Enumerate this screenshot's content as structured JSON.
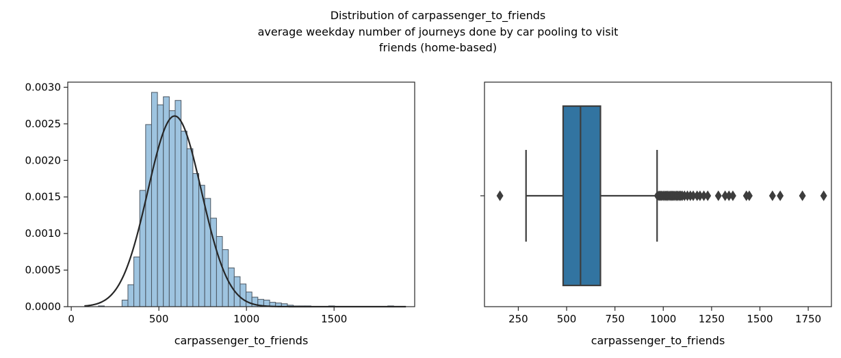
{
  "figure": {
    "title_lines": [
      "Distribution of carpassenger_to_friends",
      "average weekday number of journeys done by car pooling to visit",
      "friends (home-based)"
    ]
  },
  "chart_data": [
    {
      "type": "bar",
      "subtype": "histogram-with-fitted-normal-curve",
      "xlabel": "carpassenger_to_friends",
      "ylabel": "",
      "xlim": [
        -20,
        1960
      ],
      "ylim": [
        0,
        0.00307
      ],
      "xticks": [
        0,
        500,
        1000,
        1500
      ],
      "xtick_labels": [
        "0",
        "500",
        "1000",
        "1500"
      ],
      "yticks": [
        0,
        0.0005,
        0.001,
        0.0015,
        0.002,
        0.0025,
        0.003
      ],
      "ytick_labels": [
        "0.0000",
        "0.0005",
        "0.0010",
        "0.0015",
        "0.0020",
        "0.0025",
        "0.0030"
      ],
      "bin_start": 155,
      "bin_width": 33.7,
      "bin_values": [
        1e-05,
        0,
        0,
        0,
        9e-05,
        0.0003,
        0.00068,
        0.00159,
        0.00249,
        0.00293,
        0.00276,
        0.00287,
        0.00268,
        0.00282,
        0.0024,
        0.00216,
        0.00182,
        0.00166,
        0.00148,
        0.00121,
        0.00096,
        0.00078,
        0.00053,
        0.00041,
        0.00031,
        0.0002,
        0.00013,
        0.0001,
        9e-05,
        6e-05,
        5e-05,
        4e-05,
        2e-05,
        1e-05,
        1e-05,
        1e-05,
        0,
        0,
        0,
        1e-05,
        0,
        0,
        0,
        0,
        0,
        0,
        0,
        0,
        0,
        1e-05
      ],
      "bar_color": "#9ec4e0",
      "bar_edge_color": "#4a5560",
      "fit_curve": {
        "distribution": "normal",
        "mean": 590,
        "std": 153,
        "x_range": [
          75,
          1910
        ],
        "color": "#262626"
      },
      "grid": false
    },
    {
      "type": "box",
      "orientation": "horizontal",
      "xlabel": "carpassenger_to_friends",
      "xlim": [
        75,
        1870
      ],
      "xticks": [
        250,
        500,
        750,
        1000,
        1250,
        1500,
        1750
      ],
      "xtick_labels": [
        "250",
        "500",
        "750",
        "1000",
        "1250",
        "1500",
        "1750"
      ],
      "q1": 482,
      "median": 572,
      "q3": 675,
      "whisker_low": 290,
      "whisker_high": 968,
      "outliers": [
        155,
        970,
        978,
        985,
        992,
        1000,
        1008,
        1015,
        1022,
        1030,
        1038,
        1045,
        1052,
        1060,
        1068,
        1075,
        1083,
        1090,
        1098,
        1110,
        1125,
        1140,
        1155,
        1175,
        1190,
        1210,
        1230,
        1285,
        1320,
        1340,
        1360,
        1430,
        1445,
        1565,
        1605,
        1720,
        1830
      ],
      "box_color": "#3274a1",
      "line_color": "#3d3d3d",
      "grid": false
    }
  ]
}
